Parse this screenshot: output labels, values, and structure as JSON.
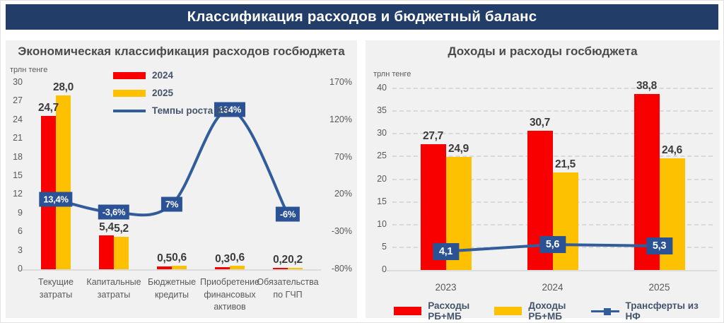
{
  "header": {
    "title": "Классификация расходов и бюджетный баланс"
  },
  "colors": {
    "red": "#f90000",
    "yellow": "#fdc101",
    "line": "#315d9a",
    "navy_box": "#2b5294",
    "header_bg": "#223d68",
    "panel_bg": "#f1f1f2",
    "axis_text": "#595959",
    "value_text": "#3c3c3c",
    "legend_text": "#44546a",
    "grid": "#d2d2d2",
    "baseline": "#dcdcdc"
  },
  "chart_data": [
    {
      "type": "bar",
      "title": "Экономическая классификация расходов госбюджета",
      "unit_label": "трлн тенге",
      "categories": [
        "Текущие затраты",
        "Капитальные затраты",
        "Бюджетные кредиты",
        "Приобретение финансовых активов",
        "Обязательства по ГЧП"
      ],
      "series": [
        {
          "name": "2024",
          "type": "bar",
          "color_key": "red",
          "values": [
            24.7,
            5.4,
            0.5,
            0.3,
            0.2
          ],
          "labels": [
            "24,7",
            "5,4",
            "0,5",
            "0,3",
            "0,2"
          ]
        },
        {
          "name": "2025",
          "type": "bar",
          "color_key": "yellow",
          "values": [
            28.0,
            5.2,
            0.6,
            0.6,
            0.2
          ],
          "labels": [
            "28,0",
            "5,2",
            "0,6",
            "0,6",
            "0,2"
          ]
        },
        {
          "name": "Темпы роста (R)",
          "type": "line",
          "axis": "right",
          "color_key": "line",
          "values": [
            13.4,
            -3.6,
            7,
            134,
            -6
          ],
          "labels": [
            "13,4%",
            "-3,6%",
            "7%",
            "134%",
            "-6%"
          ]
        }
      ],
      "left_axis": {
        "min": 0,
        "max": 30,
        "step": 3,
        "ticks": [
          "30",
          "27",
          "24",
          "21",
          "18",
          "15",
          "12",
          "9",
          "6",
          "3",
          "0"
        ]
      },
      "right_axis": {
        "min": -80,
        "max": 170,
        "step": 50,
        "ticks": [
          "170%",
          "120%",
          "70%",
          "20%",
          "-30%",
          "-80%"
        ]
      },
      "grid": false,
      "legend_position": "top"
    },
    {
      "type": "bar",
      "title": "Доходы и расходы госбюджета",
      "unit_label": "трлн тенге",
      "categories": [
        "2023",
        "2024",
        "2025"
      ],
      "series": [
        {
          "name": "Расходы РБ+МБ",
          "type": "bar",
          "color_key": "red",
          "values": [
            27.7,
            30.7,
            38.8
          ],
          "labels": [
            "27,7",
            "30,7",
            "38,8"
          ]
        },
        {
          "name": "Доходы РБ+МБ",
          "type": "bar",
          "color_key": "yellow",
          "values": [
            24.9,
            21.5,
            24.6
          ],
          "labels": [
            "24,9",
            "21,5",
            "24,6"
          ]
        },
        {
          "name": "Трансферты из НФ",
          "type": "line",
          "axis": "left",
          "color_key": "line",
          "values": [
            4.1,
            5.6,
            5.3
          ],
          "labels": [
            "4,1",
            "5,6",
            "5,3"
          ]
        }
      ],
      "left_axis": {
        "min": 0,
        "max": 40,
        "step": 5,
        "ticks": [
          "40",
          "35",
          "30",
          "25",
          "20",
          "15",
          "10",
          "5",
          "0"
        ]
      },
      "grid": true,
      "legend_position": "bottom"
    }
  ]
}
